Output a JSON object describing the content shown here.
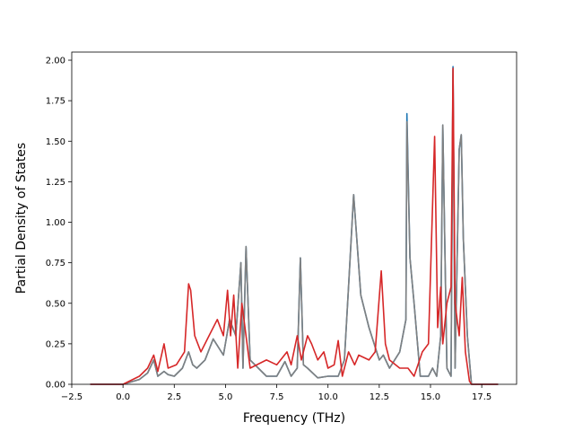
{
  "chart_data": {
    "type": "line",
    "title": "",
    "xlabel": "Frequency (THz)",
    "ylabel": "Partial Density of States",
    "xlim": [
      -2.5,
      19.2
    ],
    "ylim": [
      0,
      2.05
    ],
    "xticks": [
      -2.5,
      0.0,
      2.5,
      5.0,
      7.5,
      10.0,
      12.5,
      15.0,
      17.5
    ],
    "xtick_labels": [
      "−2.5",
      "0.0",
      "2.5",
      "5.0",
      "7.5",
      "10.0",
      "12.5",
      "15.0",
      "17.5"
    ],
    "yticks": [
      0.0,
      0.25,
      0.5,
      0.75,
      1.0,
      1.25,
      1.5,
      1.75,
      2.0
    ],
    "ytick_labels": [
      "0.00",
      "0.25",
      "0.50",
      "0.75",
      "1.00",
      "1.25",
      "1.50",
      "1.75",
      "2.00"
    ],
    "grid": false,
    "legend": "none",
    "series": [
      {
        "color": "#1f77b4",
        "x": [
          -1.6,
          0.0,
          0.8,
          1.2,
          1.5,
          1.7,
          2.0,
          2.2,
          2.5,
          2.9,
          3.2,
          3.4,
          3.6,
          4.0,
          4.4,
          4.9,
          5.2,
          5.5,
          5.75,
          5.85,
          6.0,
          6.2,
          7.0,
          7.5,
          7.9,
          8.2,
          8.5,
          8.65,
          8.8,
          9.0,
          9.5,
          10.0,
          10.5,
          10.8,
          11.0,
          11.25,
          11.6,
          12.0,
          12.5,
          12.7,
          13.0,
          13.5,
          13.8,
          13.85,
          14.0,
          14.2,
          14.5,
          14.9,
          15.1,
          15.3,
          15.5,
          15.6,
          15.8,
          16.0,
          16.1,
          16.2,
          16.4,
          16.5,
          16.6,
          16.8,
          17.0,
          18.3
        ],
        "y": [
          0.0,
          0.0,
          0.03,
          0.07,
          0.15,
          0.05,
          0.08,
          0.06,
          0.05,
          0.1,
          0.2,
          0.12,
          0.1,
          0.15,
          0.28,
          0.18,
          0.4,
          0.3,
          0.75,
          0.1,
          0.85,
          0.15,
          0.05,
          0.05,
          0.14,
          0.05,
          0.1,
          0.78,
          0.12,
          0.1,
          0.04,
          0.05,
          0.05,
          0.15,
          0.6,
          1.17,
          0.55,
          0.35,
          0.15,
          0.18,
          0.1,
          0.2,
          0.4,
          1.67,
          0.78,
          0.5,
          0.05,
          0.05,
          0.1,
          0.05,
          0.3,
          1.6,
          0.1,
          0.05,
          1.96,
          0.1,
          1.45,
          1.54,
          0.9,
          0.3,
          0.0,
          0.0
        ]
      },
      {
        "color": "#808080",
        "x": [
          -1.6,
          0.0,
          0.8,
          1.2,
          1.5,
          1.7,
          2.0,
          2.2,
          2.5,
          2.9,
          3.2,
          3.4,
          3.6,
          4.0,
          4.4,
          4.9,
          5.2,
          5.5,
          5.75,
          5.85,
          6.0,
          6.2,
          7.0,
          7.5,
          7.9,
          8.2,
          8.5,
          8.65,
          8.8,
          9.0,
          9.5,
          10.0,
          10.5,
          10.8,
          11.0,
          11.25,
          11.6,
          12.0,
          12.5,
          12.7,
          13.0,
          13.5,
          13.8,
          13.85,
          14.0,
          14.2,
          14.5,
          14.9,
          15.1,
          15.3,
          15.5,
          15.6,
          15.8,
          16.0,
          16.1,
          16.2,
          16.4,
          16.5,
          16.6,
          16.8,
          17.0,
          18.3
        ],
        "y": [
          0.0,
          0.0,
          0.03,
          0.07,
          0.15,
          0.05,
          0.08,
          0.06,
          0.05,
          0.1,
          0.2,
          0.12,
          0.1,
          0.15,
          0.28,
          0.18,
          0.4,
          0.3,
          0.75,
          0.1,
          0.85,
          0.15,
          0.05,
          0.05,
          0.14,
          0.05,
          0.1,
          0.78,
          0.12,
          0.1,
          0.04,
          0.05,
          0.05,
          0.15,
          0.6,
          1.17,
          0.55,
          0.35,
          0.15,
          0.18,
          0.1,
          0.2,
          0.4,
          1.62,
          0.78,
          0.5,
          0.05,
          0.05,
          0.1,
          0.05,
          0.3,
          1.6,
          0.1,
          0.05,
          1.94,
          0.1,
          1.45,
          1.54,
          0.9,
          0.3,
          0.0,
          0.0
        ]
      },
      {
        "color": "#d62728",
        "x": [
          -1.6,
          0.0,
          0.8,
          1.2,
          1.5,
          1.7,
          2.0,
          2.2,
          2.6,
          3.0,
          3.2,
          3.3,
          3.5,
          3.8,
          4.2,
          4.6,
          4.9,
          5.1,
          5.25,
          5.4,
          5.6,
          5.8,
          6.0,
          6.2,
          7.0,
          7.5,
          8.0,
          8.2,
          8.5,
          8.7,
          9.0,
          9.2,
          9.5,
          9.8,
          10.0,
          10.3,
          10.5,
          10.7,
          11.0,
          11.3,
          11.5,
          12.0,
          12.3,
          12.6,
          12.8,
          13.0,
          13.5,
          13.9,
          14.2,
          14.6,
          14.9,
          15.2,
          15.35,
          15.5,
          15.6,
          15.8,
          16.0,
          16.1,
          16.2,
          16.4,
          16.55,
          16.7,
          16.9,
          17.0,
          18.3
        ],
        "y": [
          0.0,
          0.0,
          0.05,
          0.1,
          0.18,
          0.08,
          0.25,
          0.1,
          0.12,
          0.2,
          0.62,
          0.58,
          0.3,
          0.2,
          0.3,
          0.4,
          0.3,
          0.58,
          0.3,
          0.55,
          0.1,
          0.5,
          0.3,
          0.1,
          0.15,
          0.12,
          0.2,
          0.12,
          0.3,
          0.15,
          0.3,
          0.25,
          0.15,
          0.2,
          0.1,
          0.12,
          0.27,
          0.05,
          0.2,
          0.12,
          0.18,
          0.15,
          0.2,
          0.7,
          0.25,
          0.15,
          0.1,
          0.1,
          0.05,
          0.2,
          0.25,
          1.53,
          0.35,
          0.6,
          0.25,
          0.5,
          0.6,
          1.95,
          0.5,
          0.3,
          0.66,
          0.2,
          0.02,
          0.0,
          0.0
        ]
      }
    ]
  }
}
